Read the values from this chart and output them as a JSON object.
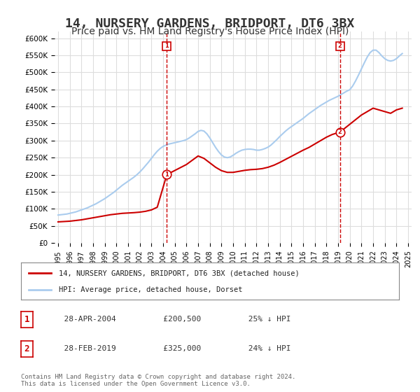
{
  "title": "14, NURSERY GARDENS, BRIDPORT, DT6 3BX",
  "subtitle": "Price paid vs. HM Land Registry's House Price Index (HPI)",
  "title_fontsize": 13,
  "subtitle_fontsize": 10,
  "background_color": "#ffffff",
  "grid_color": "#dddddd",
  "ylim": [
    0,
    620000
  ],
  "yticks": [
    0,
    50000,
    100000,
    150000,
    200000,
    250000,
    300000,
    350000,
    400000,
    450000,
    500000,
    550000,
    600000
  ],
  "ytick_labels": [
    "£0",
    "£50K",
    "£100K",
    "£150K",
    "£200K",
    "£250K",
    "£300K",
    "£350K",
    "£400K",
    "£450K",
    "£500K",
    "£550K",
    "£600K"
  ],
  "xtick_years": [
    "1995",
    "1996",
    "1997",
    "1998",
    "1999",
    "2000",
    "2001",
    "2002",
    "2003",
    "2004",
    "2005",
    "2006",
    "2007",
    "2008",
    "2009",
    "2010",
    "2011",
    "2012",
    "2013",
    "2014",
    "2015",
    "2016",
    "2017",
    "2018",
    "2019",
    "2020",
    "2021",
    "2022",
    "2023",
    "2024",
    "2025"
  ],
  "hpi_color": "#aaccee",
  "price_color": "#cc0000",
  "marker1_year": 2004.32,
  "marker1_price": 200500,
  "marker2_year": 2019.16,
  "marker2_price": 325000,
  "vline_color": "#cc0000",
  "legend_house": "14, NURSERY GARDENS, BRIDPORT, DT6 3BX (detached house)",
  "legend_hpi": "HPI: Average price, detached house, Dorset",
  "table_row1": [
    "1",
    "28-APR-2004",
    "£200,500",
    "25% ↓ HPI"
  ],
  "table_row2": [
    "2",
    "28-FEB-2019",
    "£325,000",
    "24% ↓ HPI"
  ],
  "footer": "Contains HM Land Registry data © Crown copyright and database right 2024.\nThis data is licensed under the Open Government Licence v3.0.",
  "hpi_x": [
    1995.0,
    1995.25,
    1995.5,
    1995.75,
    1996.0,
    1996.25,
    1996.5,
    1996.75,
    1997.0,
    1997.25,
    1997.5,
    1997.75,
    1998.0,
    1998.25,
    1998.5,
    1998.75,
    1999.0,
    1999.25,
    1999.5,
    1999.75,
    2000.0,
    2000.25,
    2000.5,
    2000.75,
    2001.0,
    2001.25,
    2001.5,
    2001.75,
    2002.0,
    2002.25,
    2002.5,
    2002.75,
    2003.0,
    2003.25,
    2003.5,
    2003.75,
    2004.0,
    2004.25,
    2004.5,
    2004.75,
    2005.0,
    2005.25,
    2005.5,
    2005.75,
    2006.0,
    2006.25,
    2006.5,
    2006.75,
    2007.0,
    2007.25,
    2007.5,
    2007.75,
    2008.0,
    2008.25,
    2008.5,
    2008.75,
    2009.0,
    2009.25,
    2009.5,
    2009.75,
    2010.0,
    2010.25,
    2010.5,
    2010.75,
    2011.0,
    2011.25,
    2011.5,
    2011.75,
    2012.0,
    2012.25,
    2012.5,
    2012.75,
    2013.0,
    2013.25,
    2013.5,
    2013.75,
    2014.0,
    2014.25,
    2014.5,
    2014.75,
    2015.0,
    2015.25,
    2015.5,
    2015.75,
    2016.0,
    2016.25,
    2016.5,
    2016.75,
    2017.0,
    2017.25,
    2017.5,
    2017.75,
    2018.0,
    2018.25,
    2018.5,
    2018.75,
    2019.0,
    2019.25,
    2019.5,
    2019.75,
    2020.0,
    2020.25,
    2020.5,
    2020.75,
    2021.0,
    2021.25,
    2021.5,
    2021.75,
    2022.0,
    2022.25,
    2022.5,
    2022.75,
    2023.0,
    2023.25,
    2023.5,
    2023.75,
    2024.0,
    2024.25,
    2024.5
  ],
  "hpi_y": [
    82000,
    83000,
    84000,
    85000,
    87000,
    89000,
    91000,
    94000,
    97000,
    100000,
    103000,
    107000,
    111000,
    115000,
    120000,
    125000,
    130000,
    136000,
    142000,
    148000,
    155000,
    162000,
    169000,
    175000,
    181000,
    187000,
    193000,
    200000,
    208000,
    217000,
    227000,
    237000,
    248000,
    259000,
    269000,
    277000,
    283000,
    287000,
    290000,
    292000,
    294000,
    296000,
    298000,
    300000,
    303000,
    308000,
    314000,
    320000,
    327000,
    330000,
    328000,
    320000,
    308000,
    294000,
    280000,
    268000,
    258000,
    252000,
    250000,
    252000,
    257000,
    263000,
    268000,
    272000,
    274000,
    275000,
    275000,
    274000,
    272000,
    272000,
    274000,
    277000,
    281000,
    287000,
    295000,
    303000,
    312000,
    320000,
    328000,
    335000,
    341000,
    347000,
    353000,
    359000,
    365000,
    372000,
    379000,
    385000,
    391000,
    397000,
    403000,
    408000,
    413000,
    418000,
    422000,
    426000,
    430000,
    435000,
    440000,
    445000,
    449000,
    460000,
    475000,
    492000,
    510000,
    528000,
    545000,
    558000,
    565000,
    565000,
    558000,
    548000,
    540000,
    535000,
    533000,
    535000,
    540000,
    548000,
    555000
  ],
  "price_x": [
    1995.0,
    1995.5,
    1996.0,
    1996.5,
    1997.0,
    1997.5,
    1998.0,
    1998.5,
    1999.0,
    1999.5,
    2000.0,
    2000.5,
    2001.0,
    2001.5,
    2002.0,
    2002.5,
    2003.0,
    2003.5,
    2004.32,
    2006.0,
    2007.0,
    2007.5,
    2008.0,
    2008.5,
    2009.0,
    2009.5,
    2010.0,
    2010.5,
    2011.0,
    2011.5,
    2012.0,
    2012.5,
    2013.0,
    2013.5,
    2014.0,
    2014.5,
    2015.0,
    2015.5,
    2016.0,
    2016.5,
    2017.0,
    2017.5,
    2018.0,
    2018.5,
    2019.16,
    2021.0,
    2021.5,
    2022.0,
    2022.5,
    2023.0,
    2023.5,
    2024.0,
    2024.5
  ],
  "price_y": [
    62000,
    63000,
    64000,
    66000,
    68000,
    71000,
    74000,
    77000,
    80000,
    83000,
    85000,
    87000,
    88000,
    89000,
    90500,
    93000,
    97000,
    105000,
    200500,
    230000,
    255000,
    248000,
    235000,
    222000,
    212000,
    207000,
    207000,
    210000,
    213000,
    215000,
    216000,
    218000,
    222000,
    228000,
    236000,
    245000,
    254000,
    263000,
    272000,
    280000,
    290000,
    300000,
    310000,
    318000,
    325000,
    375000,
    385000,
    395000,
    390000,
    385000,
    380000,
    390000,
    395000
  ]
}
